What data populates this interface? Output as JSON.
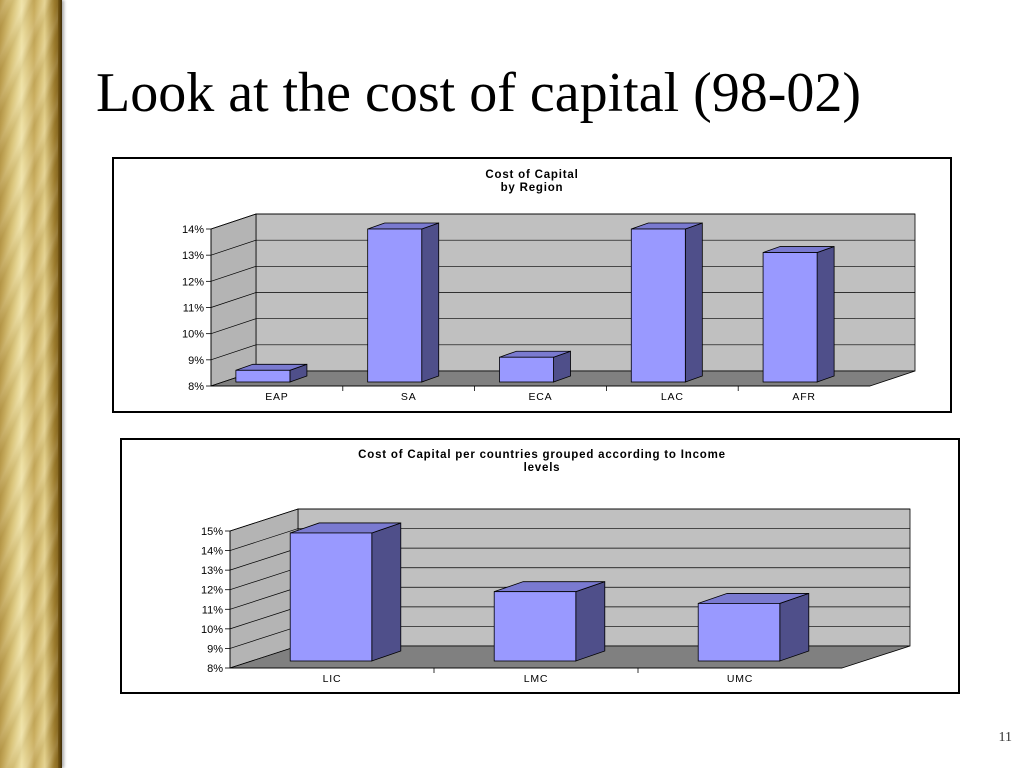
{
  "slide": {
    "title": "Look at the cost of capital (98-02)",
    "number": "11"
  },
  "colors": {
    "bar_front": "#9999ff",
    "bar_side": "#4f4f8a",
    "bar_top": "#7a7ad0",
    "back_wall": "#c0c0c0",
    "side_wall": "#b4b4b4",
    "floor": "#808080",
    "accent_sidebar": "#c9ad5e"
  },
  "chart_data": [
    {
      "type": "bar",
      "title": [
        "Cost of Capital",
        "by Region"
      ],
      "categories": [
        "EAP",
        "SA",
        "ECA",
        "LAC",
        "AFR"
      ],
      "values": [
        8.6,
        14.0,
        9.1,
        14.0,
        13.1
      ],
      "yticks": [
        "8%",
        "9%",
        "10%",
        "11%",
        "12%",
        "13%",
        "14%"
      ],
      "ylim": [
        8,
        14
      ],
      "grid": true,
      "legend": "none"
    },
    {
      "type": "bar",
      "title": [
        "Cost of Capital per countries grouped according to Income",
        "levels"
      ],
      "categories": [
        "LIC",
        "LMC",
        "UMC"
      ],
      "values": [
        14.9,
        11.9,
        11.3
      ],
      "yticks": [
        "8%",
        "9%",
        "10%",
        "11%",
        "12%",
        "13%",
        "14%",
        "15%"
      ],
      "ylim": [
        8,
        15
      ],
      "grid": true,
      "legend": "none"
    }
  ]
}
